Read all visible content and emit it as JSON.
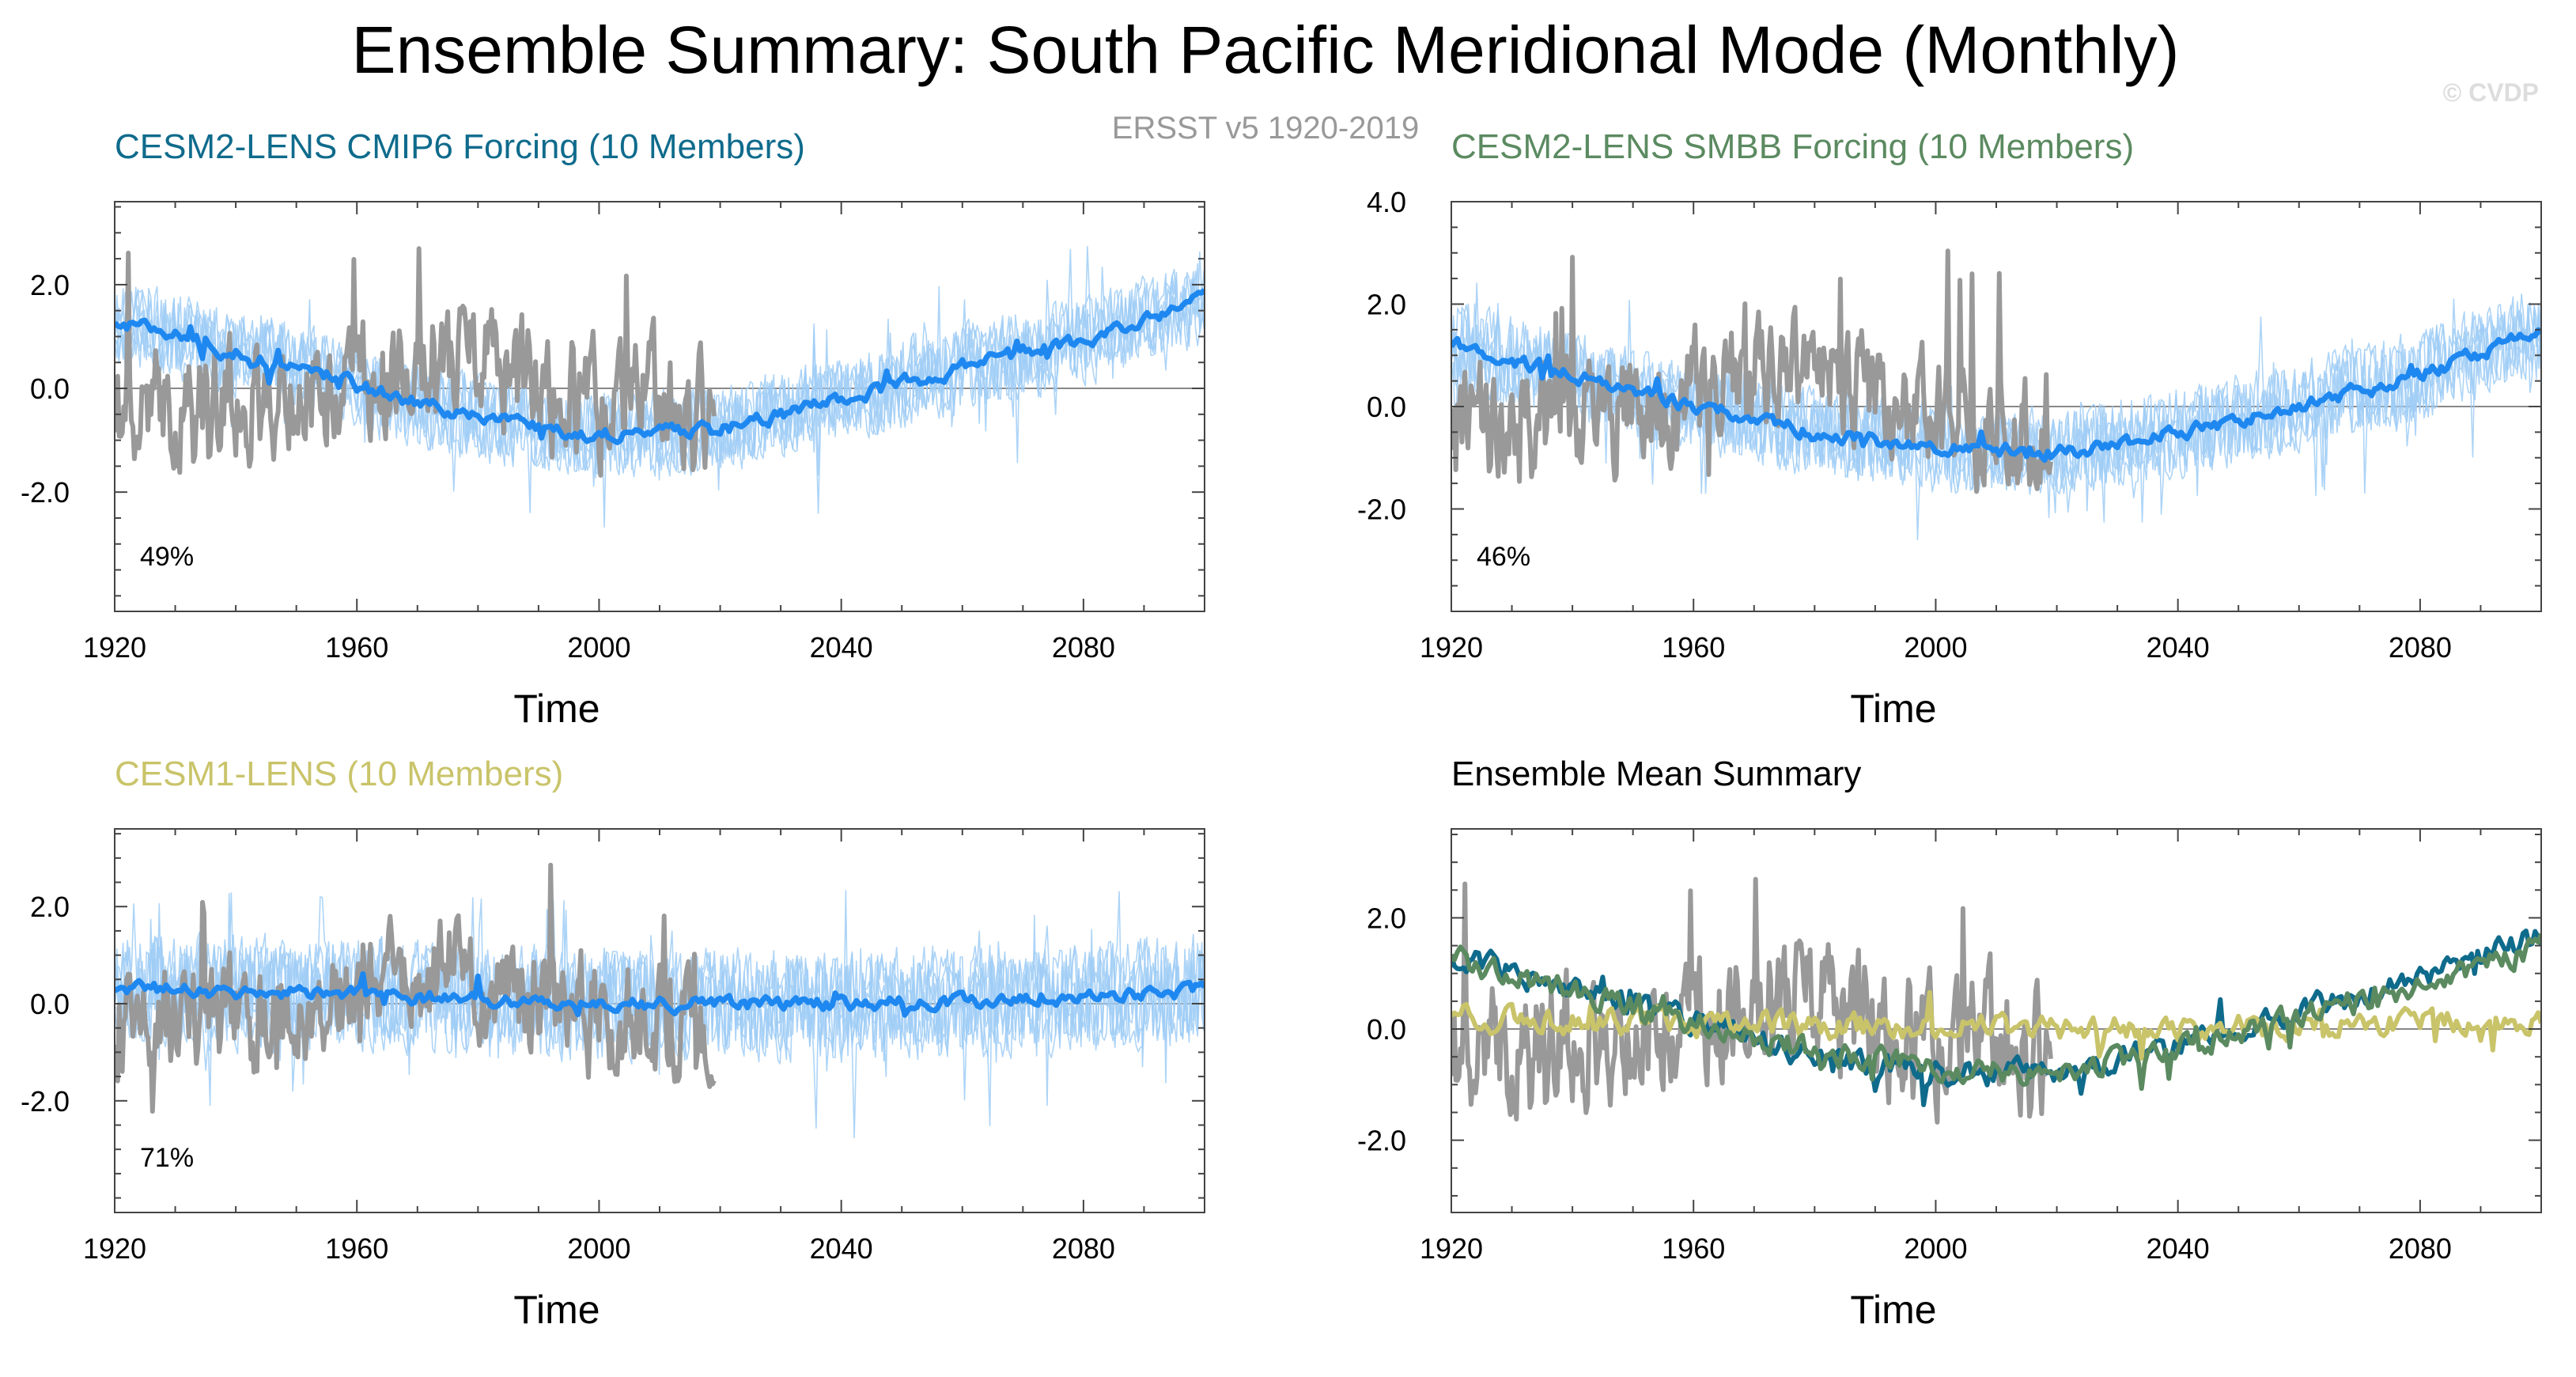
{
  "figure": {
    "title": "Ensemble Summary: South Pacific Meridional Mode (Monthly)",
    "observation_label": "ERSST v5 1920-2019",
    "credit": "© CVDP",
    "colors": {
      "observation": "#999999",
      "ensemble_spread": "#9fcdf6",
      "ensemble_mean": "#1e88f0",
      "cesm2_cmip6": "#0f6b8c",
      "cesm2_smbb": "#5b8a60",
      "cesm1": "#c9c46a",
      "axis": "#444444",
      "zero_line": "#888888"
    }
  },
  "chart_data": [
    {
      "id": "cesm2-cmip6",
      "type": "line",
      "title": "CESM2-LENS CMIP6 Forcing (10 Members)",
      "title_color": "#0f6b8c",
      "xlabel": "Time",
      "ylabel": "",
      "xlim": [
        1920,
        2100
      ],
      "ylim": [
        -4.3,
        3.6
      ],
      "xticks": [
        1920,
        1960,
        2000,
        2040,
        2080
      ],
      "yticks": [
        2.0,
        0.0,
        -2.0
      ],
      "ytick_labels": [
        "2.0",
        "0.0",
        "-2.0"
      ],
      "pattern_correlation_label": "49%",
      "ensemble_mean_trend": {
        "x": [
          1920,
          1950,
          1980,
          2000,
          2020,
          2040,
          2060,
          2080,
          2100
        ],
        "y": [
          1.3,
          0.4,
          -0.6,
          -0.9,
          -0.8,
          -0.2,
          0.4,
          0.9,
          1.7
        ]
      },
      "spread_halfwidth": 0.95,
      "observation_range": [
        1920,
        2019
      ]
    },
    {
      "id": "cesm2-smbb",
      "type": "line",
      "title": "CESM2-LENS SMBB Forcing (10 Members)",
      "title_color": "#5b8a60",
      "xlabel": "Time",
      "ylabel": "",
      "xlim": [
        1920,
        2100
      ],
      "ylim": [
        -4.0,
        4.0
      ],
      "xticks": [
        1920,
        1960,
        2000,
        2040,
        2080
      ],
      "yticks": [
        4.0,
        2.0,
        0.0,
        -2.0
      ],
      "ytick_labels": [
        "4.0",
        "2.0",
        "0.0",
        "-2.0"
      ],
      "pattern_correlation_label": "46%",
      "ensemble_mean_trend": {
        "x": [
          1920,
          1950,
          1980,
          2000,
          2020,
          2040,
          2060,
          2080,
          2100
        ],
        "y": [
          1.2,
          0.3,
          -0.5,
          -0.8,
          -0.9,
          -0.5,
          0.0,
          0.6,
          1.5
        ]
      },
      "spread_halfwidth": 1.0,
      "observation_range": [
        1920,
        2019
      ]
    },
    {
      "id": "cesm1",
      "type": "line",
      "title": "CESM1-LENS (10 Members)",
      "title_color": "#c9c46a",
      "xlabel": "Time",
      "ylabel": "",
      "xlim": [
        1920,
        2100
      ],
      "ylim": [
        -4.3,
        3.6
      ],
      "xticks": [
        1920,
        1960,
        2000,
        2040,
        2080
      ],
      "yticks": [
        2.0,
        0.0,
        -2.0
      ],
      "ytick_labels": [
        "2.0",
        "0.0",
        "-2.0"
      ],
      "pattern_correlation_label": "71%",
      "ensemble_mean_trend": {
        "x": [
          1920,
          1960,
          2000,
          2040,
          2080,
          2100
        ],
        "y": [
          0.3,
          0.2,
          0.0,
          0.0,
          0.1,
          0.3
        ]
      },
      "spread_halfwidth": 1.3,
      "observation_range": [
        1920,
        2019
      ]
    },
    {
      "id": "ensemble-mean-summary",
      "type": "line",
      "title": "Ensemble Mean Summary",
      "title_color": "#000000",
      "xlabel": "Time",
      "ylabel": "",
      "xlim": [
        1920,
        2100
      ],
      "ylim": [
        -3.3,
        3.6
      ],
      "xticks": [
        1920,
        1960,
        2000,
        2040,
        2080
      ],
      "yticks": [
        2.0,
        0.0,
        -2.0
      ],
      "ytick_labels": [
        "2.0",
        "0.0",
        "-2.0"
      ],
      "series": [
        {
          "name": "CESM2-LENS CMIP6 Forcing",
          "color": "#0f6b8c",
          "trend": {
            "x": [
              1920,
              1950,
              1980,
              2000,
              2020,
              2040,
              2060,
              2080,
              2100
            ],
            "y": [
              1.3,
              0.5,
              -0.5,
              -0.8,
              -0.8,
              -0.3,
              0.3,
              0.9,
              1.7
            ]
          }
        },
        {
          "name": "CESM1-LENS",
          "color": "#c9c46a",
          "trend": {
            "x": [
              1920,
              1960,
              2000,
              2040,
              2080,
              2100
            ],
            "y": [
              0.2,
              0.1,
              0.0,
              0.0,
              0.1,
              0.1
            ]
          }
        },
        {
          "name": "CESM2-LENS SMBB Forcing",
          "color": "#5b8a60",
          "trend": {
            "x": [
              1920,
              1950,
              1980,
              2000,
              2020,
              2040,
              2060,
              2080,
              2100
            ],
            "y": [
              1.3,
              0.4,
              -0.4,
              -0.7,
              -0.8,
              -0.4,
              0.2,
              0.8,
              1.5
            ]
          }
        }
      ],
      "observation_range": [
        1920,
        2019
      ]
    }
  ]
}
